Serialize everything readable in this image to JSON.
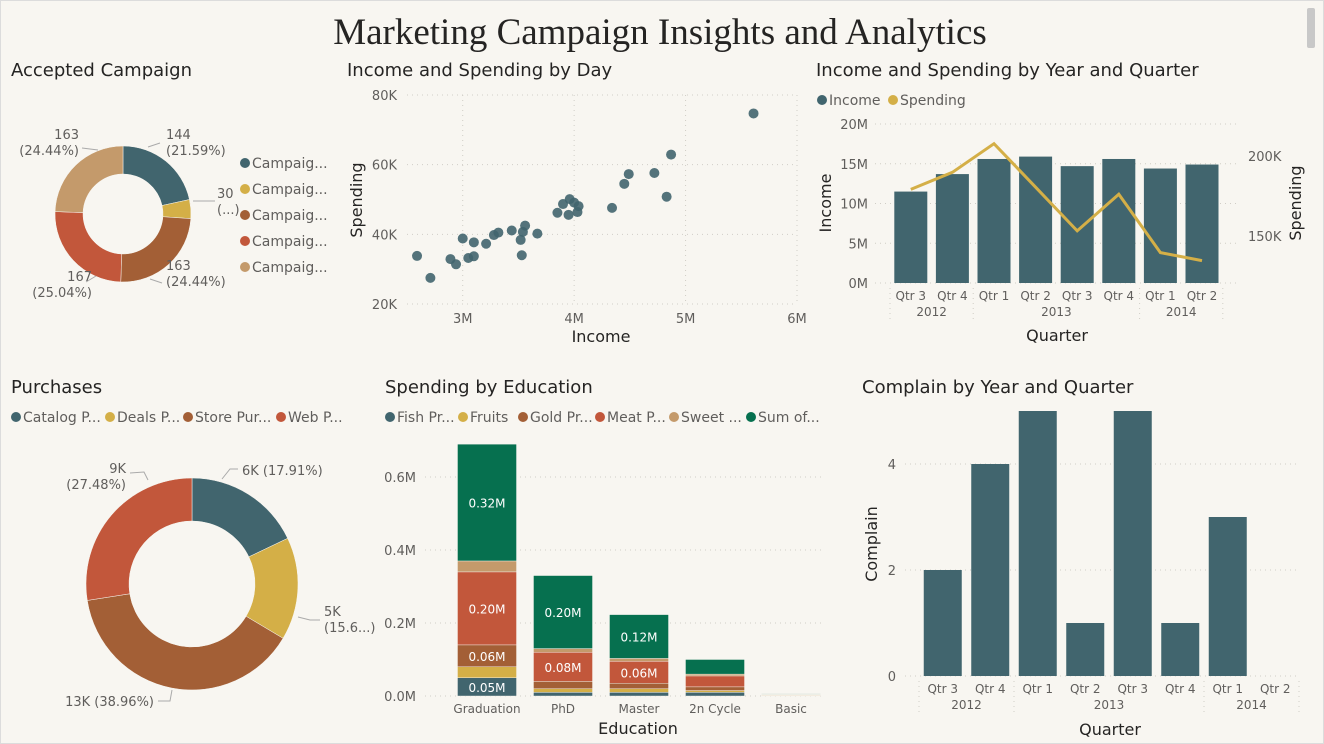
{
  "title": "Marketing Campaign Insights and Analytics",
  "colors": {
    "teal": "#41656e",
    "yellow": "#d4af47",
    "brown": "#a35f36",
    "red": "#c2573b",
    "tan": "#c49a6b",
    "green": "#06704f",
    "grid": "#d0cdc6",
    "text": "#605e5c",
    "dark": "#252423"
  },
  "chart_data": [
    {
      "type": "pie",
      "title": "Accepted Campaign",
      "legend": [
        "Campaig...",
        "Campaig...",
        "Campaig...",
        "Campaig...",
        "Campaig..."
      ],
      "values": [
        144,
        30,
        163,
        167,
        163
      ],
      "labels": [
        [
          "144",
          "(21.59%)"
        ],
        [
          "30",
          "(...)"
        ],
        [
          "163",
          "(24.44%)"
        ],
        [
          "167",
          "(25.04%)"
        ],
        [
          "163",
          "(24.44%)"
        ]
      ],
      "legend_placement": "right"
    },
    {
      "type": "scatter",
      "title": "Income and Spending by Day",
      "xlabel": "Income",
      "ylabel": "Spending",
      "xlim": [
        2.5,
        6
      ],
      "ylim": [
        20,
        80
      ],
      "xticks": [
        "3M",
        "4M",
        "5M",
        "6M"
      ],
      "xtick_values": [
        3,
        4,
        5,
        6
      ],
      "yticks": [
        "20K",
        "40K",
        "60K",
        "80K"
      ],
      "ytick_values": [
        20,
        40,
        60,
        80
      ],
      "points": [
        [
          2.59,
          33.8
        ],
        [
          2.71,
          27.5
        ],
        [
          2.89,
          32.9
        ],
        [
          2.94,
          31.4
        ],
        [
          3.0,
          38.8
        ],
        [
          3.05,
          33.2
        ],
        [
          3.1,
          37.7
        ],
        [
          3.1,
          33.7
        ],
        [
          3.21,
          37.3
        ],
        [
          3.28,
          39.8
        ],
        [
          3.32,
          40.5
        ],
        [
          3.44,
          41.1
        ],
        [
          3.52,
          38.4
        ],
        [
          3.53,
          34.0
        ],
        [
          3.54,
          40.7
        ],
        [
          3.56,
          42.5
        ],
        [
          3.67,
          40.2
        ],
        [
          3.85,
          46.2
        ],
        [
          3.9,
          48.7
        ],
        [
          3.95,
          45.6
        ],
        [
          3.96,
          50.1
        ],
        [
          4.0,
          49.1
        ],
        [
          4.04,
          48.1
        ],
        [
          4.03,
          46.4
        ],
        [
          4.34,
          47.6
        ],
        [
          4.45,
          54.5
        ],
        [
          4.49,
          57.3
        ],
        [
          4.72,
          57.6
        ],
        [
          4.83,
          50.8
        ],
        [
          4.87,
          62.9
        ],
        [
          5.61,
          74.7
        ]
      ]
    },
    {
      "type": "bar",
      "title": "Income and Spending by Year and Quarter",
      "legend": [
        "Income",
        "Spending"
      ],
      "xlabel": "Quarter",
      "ylabel": "Income",
      "y2label": "Spending",
      "categories": [
        "Qtr 3",
        "Qtr 4",
        "Qtr 1",
        "Qtr 2",
        "Qtr 3",
        "Qtr 4",
        "Qtr 1",
        "Qtr 2"
      ],
      "years": [
        {
          "label": "2012",
          "span": 2
        },
        {
          "label": "2013",
          "span": 4
        },
        {
          "label": "2014",
          "span": 2
        }
      ],
      "ylim": [
        0,
        20
      ],
      "yticks": [
        "0M",
        "5M",
        "10M",
        "15M",
        "20M"
      ],
      "y2lim": [
        120.6,
        220
      ],
      "y2ticks": [
        "150K",
        "200K"
      ],
      "y2tick_values": [
        150,
        200
      ],
      "series": [
        {
          "name": "Income",
          "kind": "bar",
          "values": [
            11.5,
            13.7,
            15.6,
            15.9,
            14.7,
            15.6,
            14.4,
            14.9
          ]
        },
        {
          "name": "Spending",
          "kind": "line",
          "values": [
            179.1,
            189.8,
            207.7,
            180.5,
            153.2,
            176.1,
            139.6,
            134.6
          ]
        }
      ]
    },
    {
      "type": "pie",
      "title": "Purchases",
      "legend": [
        "Catalog P...",
        "Deals P...",
        "Store Pur...",
        "Web P..."
      ],
      "values": [
        17.91,
        15.65,
        38.96,
        27.48
      ],
      "labels": [
        [
          "6K (17.91%)"
        ],
        [
          "5K",
          "(15.6...)"
        ],
        [
          "13K (38.96%)"
        ],
        [
          "9K",
          "(27.48%)"
        ]
      ],
      "legend_placement": "top-left"
    },
    {
      "type": "bar",
      "title": "Spending by Education",
      "legend": [
        "Fish Pr...",
        "Fruits",
        "Gold Pr...",
        "Meat P...",
        "Sweet ...",
        "Sum of..."
      ],
      "xlabel": "Education",
      "categories": [
        "Graduation",
        "PhD",
        "Master",
        "2n Cycle",
        "Basic"
      ],
      "ylim": [
        0,
        0.7
      ],
      "yticks": [
        "0.0M",
        "0.2M",
        "0.4M",
        "0.6M"
      ],
      "ytick_values": [
        0,
        0.2,
        0.4,
        0.6
      ],
      "stacked": true,
      "series": [
        {
          "name": "Fish Pr...",
          "values": [
            0.05,
            0.01,
            0.01,
            0.01,
            0.001
          ],
          "labels": [
            "0.05M",
            "",
            "",
            "",
            ""
          ]
        },
        {
          "name": "Fruits",
          "values": [
            0.03,
            0.01,
            0.01,
            0.005,
            0.001
          ],
          "labels": [
            "",
            "",
            "",
            "",
            ""
          ]
        },
        {
          "name": "Gold Pr...",
          "values": [
            0.06,
            0.02,
            0.015,
            0.01,
            0.001
          ],
          "labels": [
            "0.06M",
            "",
            "",
            "",
            ""
          ]
        },
        {
          "name": "Meat P...",
          "values": [
            0.2,
            0.08,
            0.06,
            0.03,
            0.001
          ],
          "labels": [
            "0.20M",
            "0.08M",
            "0.06M",
            "",
            ""
          ]
        },
        {
          "name": "Sweet ...",
          "values": [
            0.03,
            0.01,
            0.008,
            0.005,
            0.001
          ],
          "labels": [
            "",
            "",
            "",
            "",
            ""
          ]
        },
        {
          "name": "Sum of...",
          "values": [
            0.32,
            0.2,
            0.12,
            0.04,
            0.001
          ],
          "labels": [
            "0.32M",
            "0.20M",
            "0.12M",
            "",
            ""
          ]
        }
      ]
    },
    {
      "type": "bar",
      "title": "Complain by Year and Quarter",
      "xlabel": "Quarter",
      "ylabel": "Complain",
      "categories": [
        "Qtr 3",
        "Qtr 4",
        "Qtr 1",
        "Qtr 2",
        "Qtr 3",
        "Qtr 4",
        "Qtr 1",
        "Qtr 2"
      ],
      "years": [
        {
          "label": "2012",
          "span": 2
        },
        {
          "label": "2013",
          "span": 4
        },
        {
          "label": "2014",
          "span": 2
        }
      ],
      "ylim": [
        0,
        5
      ],
      "yticks": [
        "0",
        "2",
        "4"
      ],
      "ytick_values": [
        0,
        2,
        4
      ],
      "values": [
        2,
        4,
        5,
        1,
        5,
        1,
        3,
        0
      ]
    }
  ]
}
